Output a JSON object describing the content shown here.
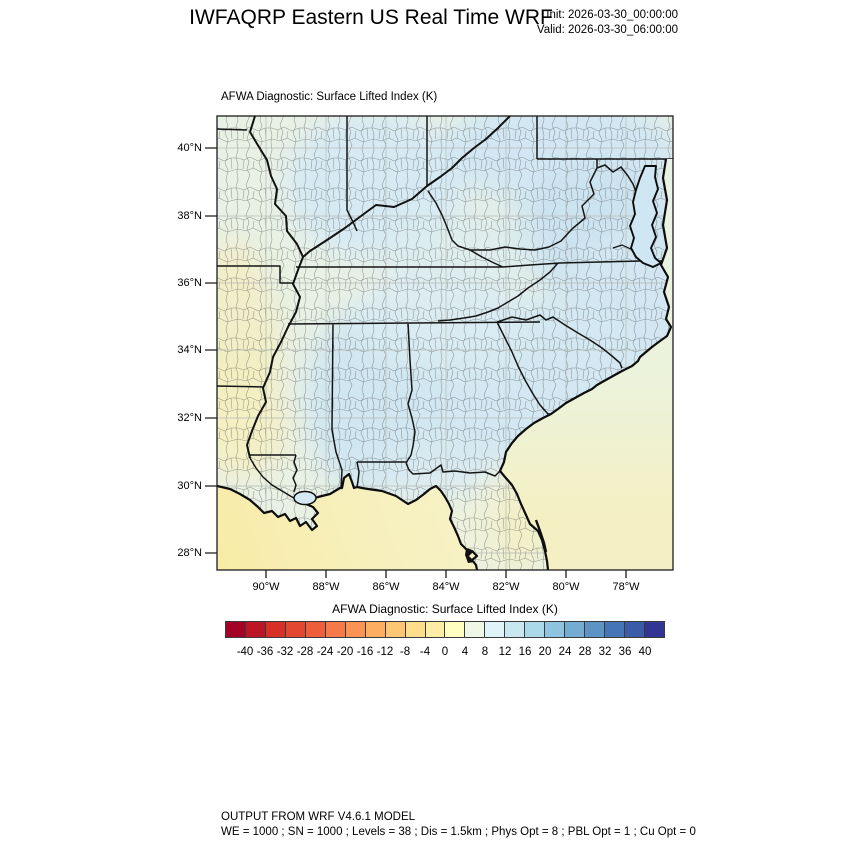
{
  "header": {
    "title": "IWFAQRP Eastern US Real Time WRF",
    "init_label": "Init: 2026-03-30_00:00:00",
    "valid_label": "Valid: 2026-03-30_06:00:00"
  },
  "map": {
    "subtitle": "AFWA Diagnostic: Surface Lifted Index   (K)",
    "y_tick_labels": [
      "40°N",
      "38°N",
      "36°N",
      "34°N",
      "32°N",
      "30°N",
      "28°N"
    ],
    "x_tick_labels": [
      "90°W",
      "88°W",
      "86°W",
      "84°W",
      "82°W",
      "80°W",
      "78°W"
    ]
  },
  "colorbar": {
    "title": "AFWA Diagnostic: Surface Lifted Index  (K)",
    "tick_labels": [
      "-40",
      "-36",
      "-32",
      "-28",
      "-24",
      "-20",
      "-16",
      "-12",
      "-8",
      "-4",
      "0",
      "4",
      "8",
      "12",
      "16",
      "20",
      "24",
      "28",
      "32",
      "36",
      "40"
    ],
    "colors": [
      "#a50026",
      "#bb1526",
      "#d73027",
      "#e34732",
      "#ef5e3a",
      "#f67a49",
      "#fb9355",
      "#fdae61",
      "#fdc674",
      "#fede8c",
      "#feeda4",
      "#ffffbf",
      "#eef8e7",
      "#e0f3f8",
      "#c8e7f1",
      "#abd9e9",
      "#8fc4de",
      "#74add1",
      "#5d93c5",
      "#4575b4",
      "#3a5ba7",
      "#313695"
    ]
  },
  "field_colors": {
    "pale_green_land": "#e8f1e4",
    "light_blue": "#d5e8f2",
    "deep_blue_patch": "#cce3f0",
    "pale_yellow": "#f3efc0",
    "gulf_yellow": "#f7f2c6",
    "bay_blue": "#cfe7f2"
  },
  "footer": {
    "line1": "OUTPUT FROM WRF V4.6.1 MODEL",
    "line2": "WE = 1000 ; SN = 1000 ; Levels = 38 ; Dis = 1.5km ; Phys Opt = 8 ; PBL Opt = 1 ; Cu Opt = 0"
  }
}
